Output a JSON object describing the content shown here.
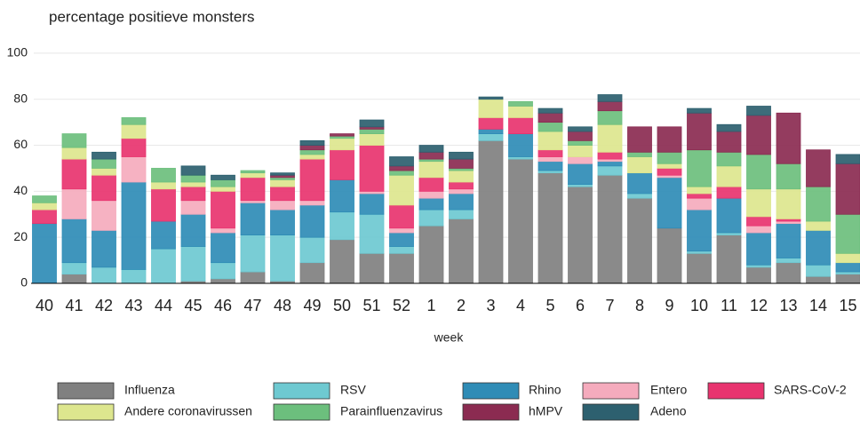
{
  "chart_data": {
    "type": "stacked_bar",
    "title": "percentage positieve monsters",
    "x_label": "week",
    "categories": [
      "40",
      "41",
      "42",
      "43",
      "44",
      "45",
      "46",
      "47",
      "48",
      "49",
      "50",
      "51",
      "52",
      "1",
      "2",
      "3",
      "4",
      "5",
      "6",
      "7",
      "8",
      "9",
      "10",
      "11",
      "12",
      "13",
      "14",
      "15"
    ],
    "ylim": [
      0,
      110
    ],
    "yticks": [
      0,
      20,
      40,
      60,
      80,
      100
    ],
    "grid": true,
    "series": [
      {
        "name": "Influenza",
        "color": "#808080",
        "values": [
          0,
          4,
          0,
          0,
          0,
          1,
          2,
          5,
          1,
          9,
          19,
          13,
          13,
          25,
          28,
          62,
          54,
          48,
          42,
          47,
          37,
          24,
          13,
          21,
          7,
          9,
          3,
          4
        ]
      },
      {
        "name": "RSV",
        "color": "#6ec9d1",
        "values": [
          0,
          5,
          7,
          6,
          15,
          15,
          7,
          16,
          20,
          11,
          12,
          17,
          3,
          7,
          4,
          3,
          1,
          1,
          1,
          4,
          2,
          0,
          1,
          1,
          1,
          2,
          5,
          1
        ]
      },
      {
        "name": "Rhino",
        "color": "#2f8cb6",
        "values": [
          26,
          19,
          16,
          38,
          12,
          14,
          13,
          14,
          11,
          14,
          14,
          9,
          6,
          5,
          7,
          2,
          10,
          4,
          9,
          2,
          9,
          22,
          18,
          15,
          14,
          15,
          15,
          4
        ]
      },
      {
        "name": "Entero",
        "color": "#f5abbd",
        "values": [
          0,
          13,
          13,
          11,
          0,
          6,
          2,
          1,
          4,
          2,
          0,
          1,
          2,
          3,
          2,
          0,
          0,
          2,
          3,
          1,
          0,
          1,
          5,
          0,
          3,
          1,
          0,
          0
        ]
      },
      {
        "name": "SARS-CoV-2",
        "color": "#e8346f",
        "values": [
          6,
          13,
          11,
          8,
          14,
          6,
          16,
          10,
          6,
          18,
          13,
          20,
          10,
          6,
          3,
          5,
          7,
          3,
          0,
          3,
          0,
          3,
          2,
          5,
          4,
          1,
          0,
          0
        ]
      },
      {
        "name": "Andere coronavirussen",
        "color": "#dde68e",
        "values": [
          3,
          5,
          3,
          6,
          3,
          2,
          2,
          2,
          3,
          2,
          5,
          5,
          13,
          7,
          5,
          8,
          5,
          8,
          5,
          12,
          7,
          2,
          3,
          9,
          12,
          13,
          4,
          4
        ]
      },
      {
        "name": "Parainfluenzavirus",
        "color": "#6cbf7d",
        "values": [
          3,
          6,
          4,
          3,
          6,
          3,
          3,
          1,
          1,
          2,
          1,
          2,
          2,
          1,
          1,
          0,
          2,
          4,
          2,
          6,
          2,
          5,
          16,
          6,
          15,
          11,
          15,
          17
        ]
      },
      {
        "name": "hMPV",
        "color": "#8b2b51",
        "values": [
          0,
          0,
          0,
          0,
          0,
          0,
          0,
          0,
          1,
          2,
          1,
          1,
          2,
          3,
          4,
          0,
          0,
          4,
          4,
          4,
          11,
          11,
          16,
          9,
          17,
          22,
          16,
          22
        ]
      },
      {
        "name": "Adeno",
        "color": "#2d606f",
        "values": [
          0,
          0,
          3,
          0,
          0,
          4,
          2,
          0,
          1,
          2,
          0,
          3,
          4,
          3,
          3,
          1,
          0,
          2,
          2,
          3,
          0,
          0,
          2,
          3,
          4,
          0,
          0,
          4
        ]
      }
    ]
  }
}
